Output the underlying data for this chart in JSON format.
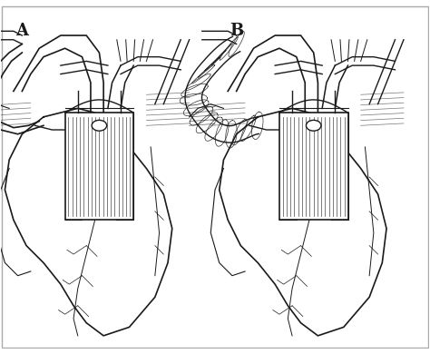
{
  "background_color": "#ffffff",
  "border_color": "#aaaaaa",
  "label_A": "A",
  "label_B": "B",
  "label_fontsize": 13,
  "line_color": "#1a1a1a",
  "line_width": 1.0,
  "fig_width": 4.74,
  "fig_height": 3.9,
  "dpi": 100
}
